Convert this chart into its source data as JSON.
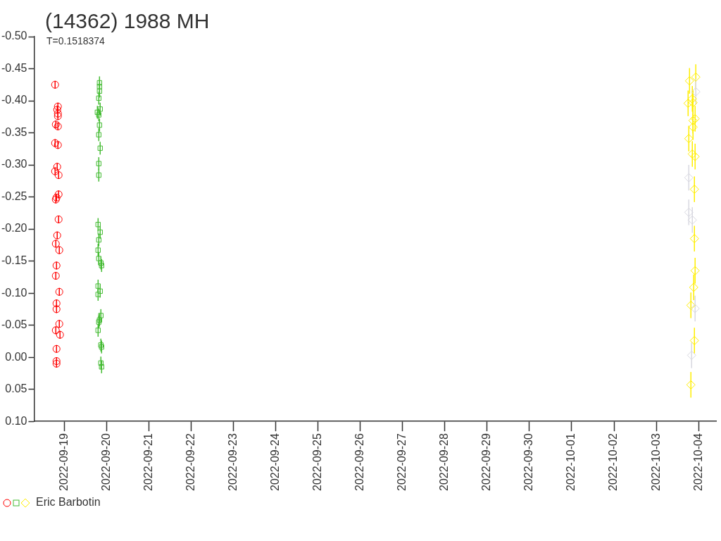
{
  "chart_data": {
    "type": "scatter",
    "title": "(14362) 1988 MH",
    "subtitle": "T=0.1518374",
    "xlim": [
      "2022-09-18T06:56",
      "2022-10-04T09:55"
    ],
    "xticks": [
      "2022-09-19",
      "2022-09-20",
      "2022-09-21",
      "2022-09-22",
      "2022-09-23",
      "2022-09-24",
      "2022-09-25",
      "2022-09-26",
      "2022-09-27",
      "2022-09-28",
      "2022-09-29",
      "2022-09-30",
      "2022-10-01",
      "2022-10-02",
      "2022-10-03",
      "2022-10-04"
    ],
    "ylim": [
      0.1,
      -0.5
    ],
    "yticks": [
      {
        "value": -0.5,
        "label": "-0.50"
      },
      {
        "value": -0.45,
        "label": "-0.45"
      },
      {
        "value": -0.4,
        "label": "-0.40"
      },
      {
        "value": -0.35,
        "label": "-0.35"
      },
      {
        "value": -0.3,
        "label": "-0.30"
      },
      {
        "value": -0.25,
        "label": "-0.25"
      },
      {
        "value": -0.2,
        "label": "-0.20"
      },
      {
        "value": -0.15,
        "label": "-0.15"
      },
      {
        "value": -0.1,
        "label": "-0.10"
      },
      {
        "value": -0.05,
        "label": "-0.05"
      },
      {
        "value": 0,
        "label": "0.00"
      },
      {
        "value": 0.05,
        "label": "0.05"
      },
      {
        "value": 0.1,
        "label": "0.10"
      }
    ],
    "grid": false,
    "legend": "bottom left",
    "series": [
      {
        "color": "#ff0000",
        "marker": "circle",
        "x": [
          "2022-09-18T18:50",
          "2022-09-18T20:25",
          "2022-09-18T20:02",
          "2022-09-18T20:25",
          "2022-09-18T20:25",
          "2022-09-18T19:14",
          "2022-09-18T20:25",
          "2022-09-18T18:50",
          "2022-09-18T20:25",
          "2022-09-18T20:02",
          "2022-09-18T18:50",
          "2022-09-18T20:49",
          "2022-09-18T20:49",
          "2022-09-18T19:38",
          "2022-09-18T19:14",
          "2022-09-18T20:49",
          "2022-09-18T20:02",
          "2022-09-18T19:14",
          "2022-09-18T21:13",
          "2022-09-18T19:38",
          "2022-09-18T19:14",
          "2022-09-18T21:13",
          "2022-09-18T19:38",
          "2022-09-18T19:38",
          "2022-09-18T21:13",
          "2022-09-18T19:14",
          "2022-09-18T21:37",
          "2022-09-18T19:38",
          "2022-09-18T19:38",
          "2022-09-18T19:38"
        ],
        "values": [
          -0.425,
          -0.391,
          -0.386,
          -0.38,
          -0.376,
          -0.363,
          -0.36,
          -0.334,
          -0.331,
          -0.297,
          -0.29,
          -0.284,
          -0.254,
          -0.249,
          -0.246,
          -0.215,
          -0.19,
          -0.177,
          -0.167,
          -0.143,
          -0.127,
          -0.102,
          -0.084,
          -0.075,
          -0.052,
          -0.042,
          -0.035,
          -0.013,
          0.006,
          0.01
        ],
        "errors": [
          0.006,
          0.006,
          0.006,
          0.006,
          0.006,
          0.006,
          0.006,
          0.006,
          0.006,
          0.006,
          0.006,
          0.006,
          0.006,
          0.006,
          0.006,
          0.006,
          0.006,
          0.006,
          0.006,
          0.006,
          0.006,
          0.006,
          0.006,
          0.006,
          0.006,
          0.006,
          0.006,
          0.006,
          0.006,
          0.006
        ]
      },
      {
        "color": "#44bb33",
        "marker": "square",
        "x": [
          "2022-09-19T20:02",
          "2022-09-19T20:02",
          "2022-09-19T20:02",
          "2022-09-19T19:38",
          "2022-09-19T20:25",
          "2022-09-19T18:50",
          "2022-09-19T19:38",
          "2022-09-19T20:02",
          "2022-09-19T19:38",
          "2022-09-19T20:25",
          "2022-09-19T19:38",
          "2022-09-19T19:38",
          "2022-09-19T19:14",
          "2022-09-19T20:25",
          "2022-09-19T19:38",
          "2022-09-19T19:14",
          "2022-09-19T19:38",
          "2022-09-19T20:49",
          "2022-09-19T21:13",
          "2022-09-19T19:14",
          "2022-09-19T20:25",
          "2022-09-19T19:14",
          "2022-09-19T20:49",
          "2022-09-19T20:02",
          "2022-09-19T19:38",
          "2022-09-19T19:14",
          "2022-09-19T20:49",
          "2022-09-19T21:13",
          "2022-09-19T20:49",
          "2022-09-19T21:13"
        ],
        "values": [
          -0.428,
          -0.422,
          -0.415,
          -0.404,
          -0.387,
          -0.382,
          -0.378,
          -0.362,
          -0.347,
          -0.326,
          -0.302,
          -0.284,
          -0.207,
          -0.195,
          -0.183,
          -0.167,
          -0.154,
          -0.147,
          -0.143,
          -0.111,
          -0.103,
          -0.098,
          -0.065,
          -0.058,
          -0.055,
          -0.042,
          -0.019,
          -0.016,
          0.009,
          0.015
        ],
        "errors": [
          0.01,
          0.01,
          0.01,
          0.01,
          0.01,
          0.01,
          0.01,
          0.01,
          0.01,
          0.01,
          0.01,
          0.01,
          0.01,
          0.01,
          0.01,
          0.01,
          0.01,
          0.01,
          0.01,
          0.01,
          0.01,
          0.01,
          0.01,
          0.01,
          0.01,
          0.01,
          0.01,
          0.01,
          0.01,
          0.01
        ]
      },
      {
        "name": "Eric Barbotin",
        "color": "#ffee00",
        "marker": "diamond",
        "x": [
          "2022-10-03T22:25",
          "2022-10-03T18:51",
          "2022-10-03T22:25",
          "2022-10-03T20:26",
          "2022-10-03T20:50",
          "2022-10-03T18:03",
          "2022-10-03T22:01",
          "2022-10-03T20:50",
          "2022-10-03T20:50",
          "2022-10-03T18:27",
          "2022-10-03T20:26",
          "2022-10-03T22:01",
          "2022-10-03T18:27",
          "2022-10-03T21:38",
          "2022-10-03T18:27",
          "2022-10-03T20:26",
          "2022-10-03T21:38",
          "2022-10-03T22:01",
          "2022-10-03T21:14",
          "2022-10-03T19:38",
          "2022-10-03T22:01",
          "2022-10-03T21:38",
          "2022-10-03T20:02",
          "2022-10-03T19:38"
        ],
        "values": [
          -0.437,
          -0.431,
          -0.414,
          -0.403,
          -0.397,
          -0.396,
          -0.372,
          -0.369,
          -0.359,
          -0.341,
          -0.317,
          -0.313,
          -0.28,
          -0.262,
          -0.226,
          -0.214,
          -0.185,
          -0.135,
          -0.109,
          -0.081,
          -0.076,
          -0.026,
          -0.003,
          0.043
        ],
        "colors": [
          "#ffee00",
          "#ffee00",
          "#d8d8e0",
          "#ffee00",
          "#ffee00",
          "#ffee00",
          "#ffee00",
          "#ffee00",
          "#ffee00",
          "#ffee00",
          "#ffee00",
          "#ffee00",
          "#d8d8e0",
          "#ffee00",
          "#d8d8e0",
          "#d8d8e0",
          "#ffee00",
          "#ffee00",
          "#ffee00",
          "#ffee00",
          "#d8d8e0",
          "#ffee00",
          "#d8d8e0",
          "#ffee00"
        ],
        "errors": [
          0.02,
          0.02,
          0.02,
          0.02,
          0.02,
          0.02,
          0.02,
          0.02,
          0.02,
          0.02,
          0.02,
          0.02,
          0.02,
          0.02,
          0.02,
          0.02,
          0.02,
          0.02,
          0.02,
          0.02,
          0.02,
          0.02,
          0.02,
          0.02
        ]
      }
    ]
  }
}
